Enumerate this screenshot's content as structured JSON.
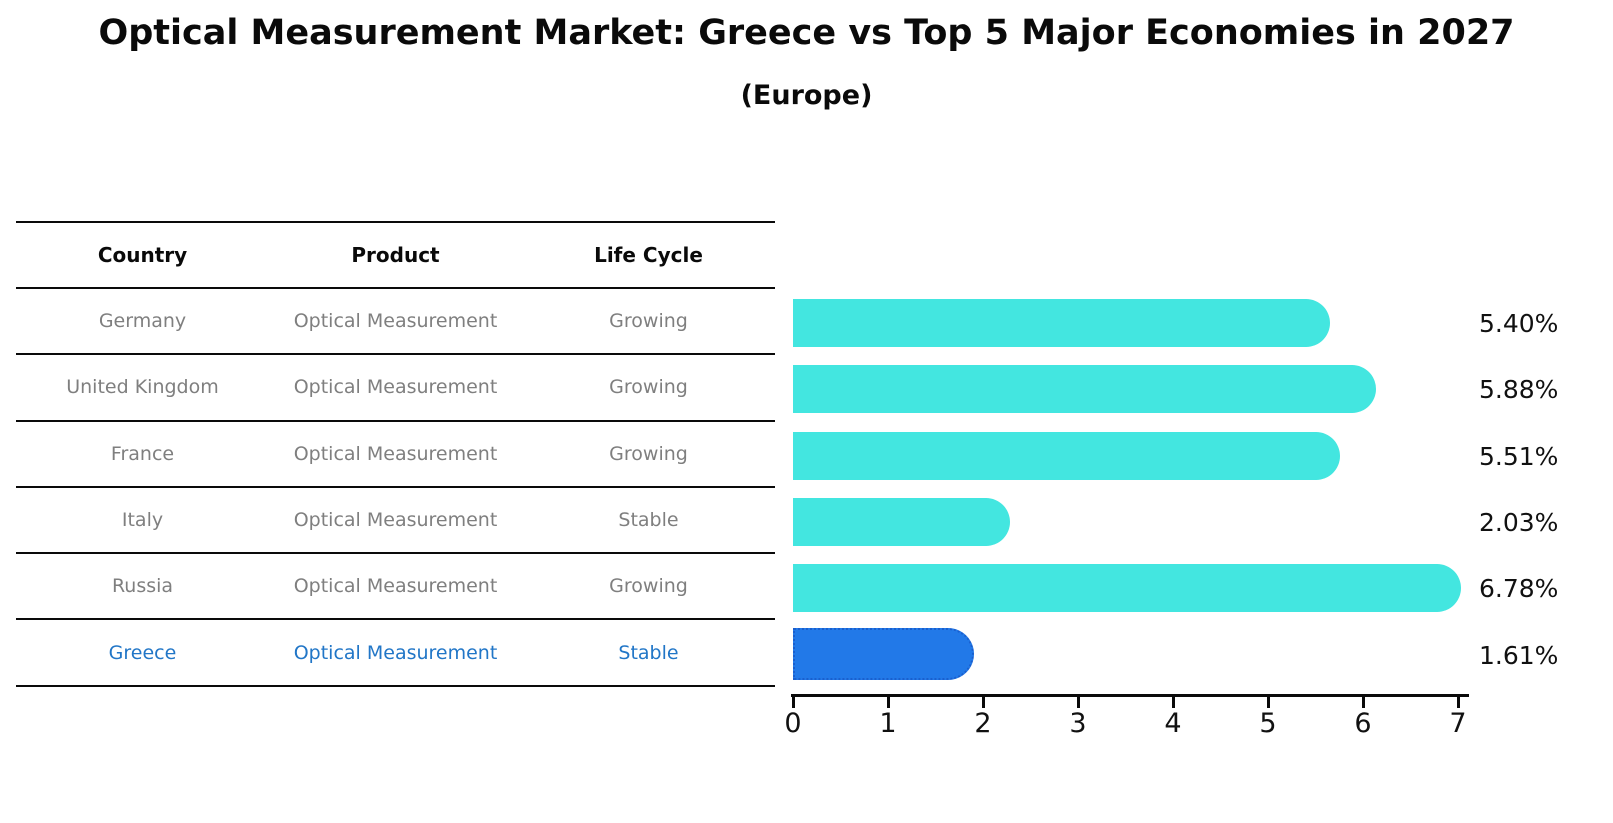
{
  "title": "Optical Measurement Market: Greece vs Top 5 Major Economies in 2027",
  "subtitle": "(Europe)",
  "table": {
    "columns": [
      "Country",
      "Product",
      "Life Cycle"
    ],
    "rows": [
      [
        "Germany",
        "Optical Measurement",
        "Growing"
      ],
      [
        "United Kingdom",
        "Optical Measurement",
        "Growing"
      ],
      [
        "France",
        "Optical Measurement",
        "Growing"
      ],
      [
        "Italy",
        "Optical Measurement",
        "Stable"
      ],
      [
        "Russia",
        "Optical Measurement",
        "Growing"
      ],
      [
        "Greece",
        "Optical Measurement",
        "Stable"
      ]
    ],
    "highlight_row": 5
  },
  "chart_data": {
    "type": "bar",
    "orientation": "horizontal",
    "categories": [
      "Germany",
      "United Kingdom",
      "France",
      "Italy",
      "Russia",
      "Greece"
    ],
    "values": [
      5.4,
      5.88,
      5.51,
      2.03,
      6.78,
      1.61
    ],
    "value_labels": [
      "5.40%",
      "5.88%",
      "5.51%",
      "2.03%",
      "6.78%",
      "1.61%"
    ],
    "xlim": [
      0,
      7
    ],
    "xticks": [
      "0",
      "1",
      "2",
      "3",
      "4",
      "5",
      "6",
      "7"
    ],
    "grid": false,
    "legend": "none",
    "highlight_index": 5,
    "bar_color": "#43E6E0",
    "highlight_bar_color": "#2279E8",
    "highlight_border_color": "#1A5FCE",
    "highlight_text_color": "#2176C7",
    "table_text_color": "#7f7f7f",
    "axis_color": "#0a0a0a"
  }
}
